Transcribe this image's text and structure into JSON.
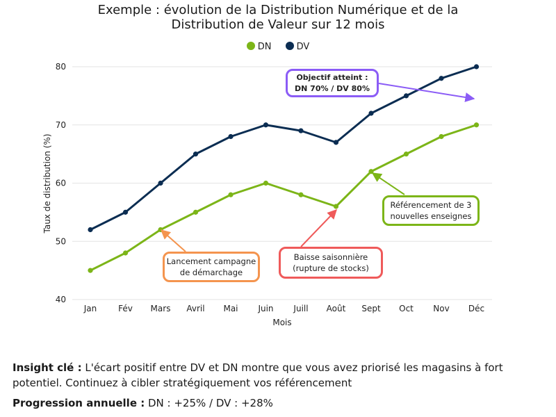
{
  "chart_data": {
    "type": "line",
    "title_line1": "Exemple : évolution de la Distribution Numérique et de la",
    "title_line2": "Distribution de Valeur sur 12 mois",
    "xlabel": "Mois",
    "ylabel": "Taux de distribution (%)",
    "ylim": [
      40,
      80
    ],
    "yticks": [
      "40",
      "50",
      "60",
      "70",
      "80"
    ],
    "grid": "horizontal",
    "legend_position": "top-center",
    "categories": [
      "Jan",
      "Fév",
      "Mars",
      "Avril",
      "Mai",
      "Juin",
      "Juill",
      "Août",
      "Sept",
      "Oct",
      "Nov",
      "Déc"
    ],
    "series": [
      {
        "name": "DN",
        "color": "#7cb518",
        "values": [
          45,
          48,
          52,
          55,
          58,
          60,
          58,
          56,
          62,
          65,
          68,
          70
        ]
      },
      {
        "name": "DV",
        "color": "#0b2d52",
        "values": [
          52,
          55,
          60,
          65,
          68,
          70,
          69,
          67,
          72,
          75,
          78,
          80
        ]
      }
    ],
    "annotations": [
      {
        "line1": "Objectif atteint :",
        "line2": "DN 70% / DV 80%",
        "color": "#8b5cf6",
        "bold": true
      },
      {
        "line1": "Référencement de 3",
        "line2": "nouvelles enseignes",
        "color": "#7cb518",
        "bold": false
      },
      {
        "line1": "Lancement campagne",
        "line2": "de démarchage",
        "color": "#f4944e",
        "bold": false
      },
      {
        "line1": "Baisse saisonnière",
        "line2": "(rupture de stocks)",
        "color": "#ef5a5a",
        "bold": false
      }
    ]
  },
  "insight": {
    "label": "Insight clé :",
    "text": " L'écart positif entre DV et DN montre que vous avez priorisé les magasins à fort potentiel. Continuez à cibler stratégiquement vos référencement"
  },
  "progression": {
    "label": "Progression annuelle :",
    "text": " DN : +25% / DV : +28%"
  }
}
